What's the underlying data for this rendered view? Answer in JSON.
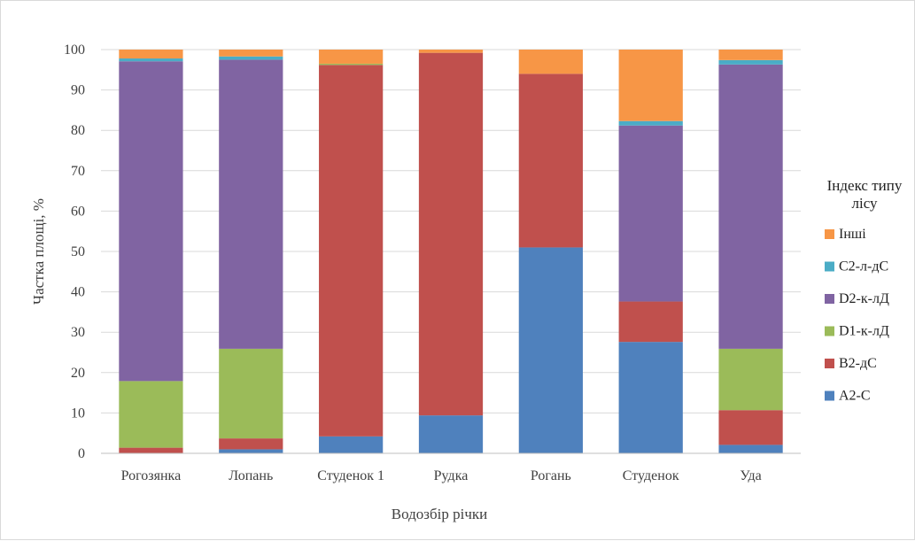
{
  "chart_data": {
    "type": "bar",
    "stacked": true,
    "title": "",
    "xlabel": "Водозбір річки",
    "ylabel": "Частка площі, %",
    "ylim": [
      0,
      100
    ],
    "yticks": [
      0,
      10,
      20,
      30,
      40,
      50,
      60,
      70,
      80,
      90,
      100
    ],
    "grid": true,
    "legend_title_lines": [
      "Індекс типу",
      "лісу"
    ],
    "legend_position": "right",
    "categories": [
      "Рогозянка",
      "Лопань",
      "Студенок 1",
      "Рудка",
      "Рогань",
      "Студенок",
      "Уда"
    ],
    "series": [
      {
        "name": "A2-C",
        "color": "#4f81bd",
        "values": [
          0,
          1.0,
          4.2,
          9.4,
          51.0,
          27.6,
          2.1
        ]
      },
      {
        "name": "B2-дС",
        "color": "#c0504d",
        "values": [
          1.4,
          2.7,
          92.0,
          89.8,
          43.0,
          10.0,
          8.6
        ]
      },
      {
        "name": "D1-к-лД",
        "color": "#9bbb59",
        "values": [
          16.5,
          22.2,
          0.3,
          0,
          0,
          0,
          15.2
        ]
      },
      {
        "name": "D2-к-лД",
        "color": "#8064a2",
        "values": [
          79.2,
          71.6,
          0,
          0,
          0,
          43.6,
          70.4
        ]
      },
      {
        "name": "C2-л-дС",
        "color": "#4bacc6",
        "values": [
          0.7,
          0.8,
          0,
          0,
          0,
          1.1,
          1.1
        ]
      },
      {
        "name": "Інші",
        "color": "#f79646",
        "values": [
          2.2,
          1.7,
          3.5,
          0.8,
          6.0,
          17.7,
          2.6
        ]
      }
    ]
  }
}
